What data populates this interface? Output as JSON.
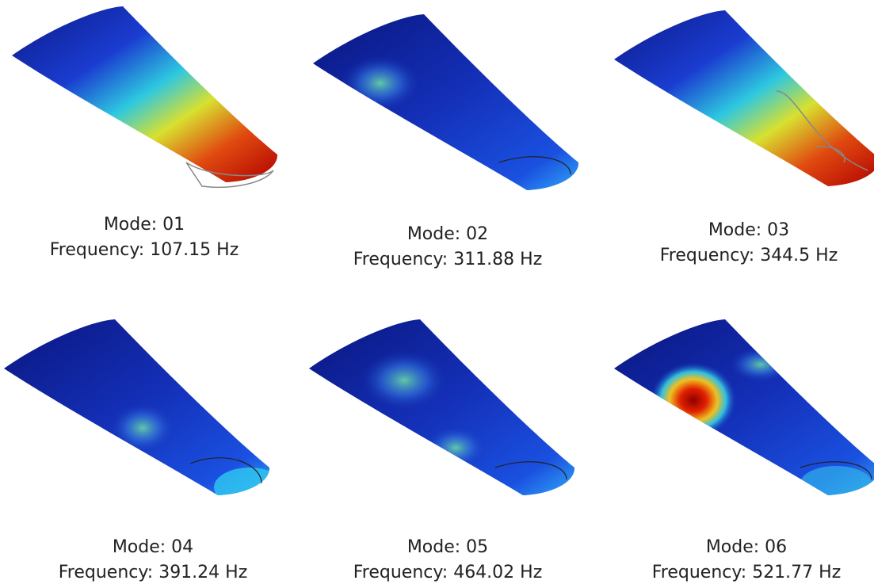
{
  "panels": [
    {
      "mode": "Mode: 01",
      "frequency": "Frequency: 107.15 Hz"
    },
    {
      "mode": "Mode: 02",
      "frequency": "Frequency: 311.88 Hz"
    },
    {
      "mode": "Mode: 03",
      "frequency": "Frequency: 344.5 Hz"
    },
    {
      "mode": "Mode: 04",
      "frequency": "Frequency: 391.24 Hz"
    },
    {
      "mode": "Mode: 05",
      "frequency": "Frequency: 464.02 Hz"
    },
    {
      "mode": "Mode: 06",
      "frequency": "Frequency: 521.77 Hz"
    }
  ]
}
